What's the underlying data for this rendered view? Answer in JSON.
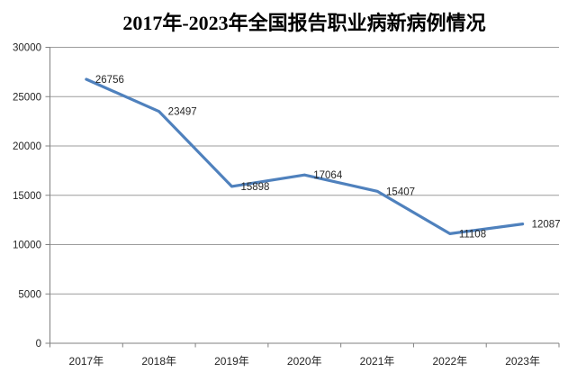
{
  "chart_data": {
    "type": "line",
    "title": "2017年-2023年全国报告职业病新病例情况",
    "categories": [
      "2017年",
      "2018年",
      "2019年",
      "2020年",
      "2021年",
      "2022年",
      "2023年"
    ],
    "values": [
      26756,
      23497,
      15898,
      17064,
      15407,
      11108,
      12087
    ],
    "xlabel": "",
    "ylabel": "",
    "ylim": [
      0,
      30000
    ],
    "y_ticks": [
      0,
      5000,
      10000,
      15000,
      20000,
      25000,
      30000
    ],
    "grid": "horizontal",
    "legend": "none",
    "data_label_position": "right",
    "colors": {
      "line": "#4F81BD",
      "gridline": "#9c9c9c",
      "axis": "#808080",
      "text": "#262626",
      "title": "#000000",
      "background": "#FFFFFF"
    }
  }
}
